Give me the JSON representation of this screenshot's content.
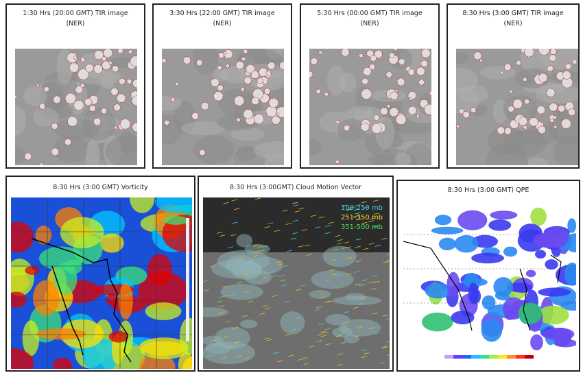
{
  "tir_panels": [
    {
      "title": "1:30 Hrs (20:00 GMT) TIR image",
      "subtitle": "(NER)"
    },
    {
      "title": "3:30 Hrs (22:00 GMT) TIR image",
      "subtitle": "(NER)"
    },
    {
      "title": "5:30 Hrs (00:00 GMT) TIR image",
      "subtitle": "(NER)"
    },
    {
      "title": "8:30 Hrs (3:00 GMT) TIR image",
      "subtitle": "(NER)"
    }
  ],
  "vorticity": {
    "title": "8:30 Hrs (3:00 GMT) Vorticity"
  },
  "cloud_motion_vector": {
    "title": "8:30 Hrs (3:00GMT) Cloud Motion Vector",
    "legend": [
      "100-250 mb",
      "251-350 mb",
      "351-500 mb"
    ]
  },
  "qpe": {
    "title": "8:30 Hrs (3:00 GMT) QPE"
  }
}
